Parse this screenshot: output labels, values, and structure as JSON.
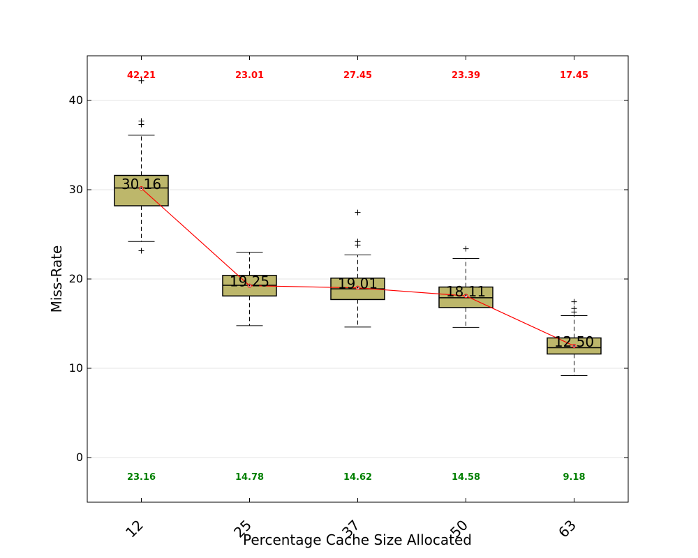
{
  "chart_data": {
    "type": "box",
    "xlabel": "Percentage Cache Size Allocated",
    "ylabel": "Miss-Rate",
    "ylim": [
      -5,
      45
    ],
    "yticks": [
      0,
      10,
      20,
      30,
      40
    ],
    "grid": true,
    "categories": [
      "12",
      "25",
      "37",
      "50",
      "63"
    ],
    "boxes": [
      {
        "category": "12",
        "q1": 28.2,
        "median": 30.2,
        "q3": 31.6,
        "whisker_low": 24.2,
        "whisker_high": 36.1,
        "outliers": [
          37.3,
          37.7,
          42.21,
          23.16
        ],
        "mean": 30.16
      },
      {
        "category": "25",
        "q1": 18.1,
        "median": 19.3,
        "q3": 20.4,
        "whisker_low": 14.78,
        "whisker_high": 23.01,
        "outliers": [],
        "mean": 19.25
      },
      {
        "category": "37",
        "q1": 17.7,
        "median": 18.9,
        "q3": 20.1,
        "whisker_low": 14.62,
        "whisker_high": 22.7,
        "outliers": [
          23.8,
          24.2,
          27.45
        ],
        "mean": 19.01
      },
      {
        "category": "50",
        "q1": 16.8,
        "median": 17.9,
        "q3": 19.1,
        "whisker_low": 14.58,
        "whisker_high": 22.3,
        "outliers": [
          23.39
        ],
        "mean": 18.11
      },
      {
        "category": "63",
        "q1": 11.6,
        "median": 12.3,
        "q3": 13.4,
        "whisker_low": 9.18,
        "whisker_high": 15.9,
        "outliers": [
          16.3,
          16.7,
          17.45
        ],
        "mean": 12.5
      }
    ],
    "max_labels": [
      "42.21",
      "23.01",
      "27.45",
      "23.39",
      "17.45"
    ],
    "min_labels": [
      "23.16",
      "14.78",
      "14.62",
      "14.58",
      "9.18"
    ],
    "mean_labels": [
      "30.16",
      "19.25",
      "19.01",
      "18.11",
      "12.50"
    ],
    "mean_line_color": "#ff0000",
    "box_color": "#bdb76b",
    "max_label_color": "#ff0000",
    "min_label_color": "#008000"
  }
}
